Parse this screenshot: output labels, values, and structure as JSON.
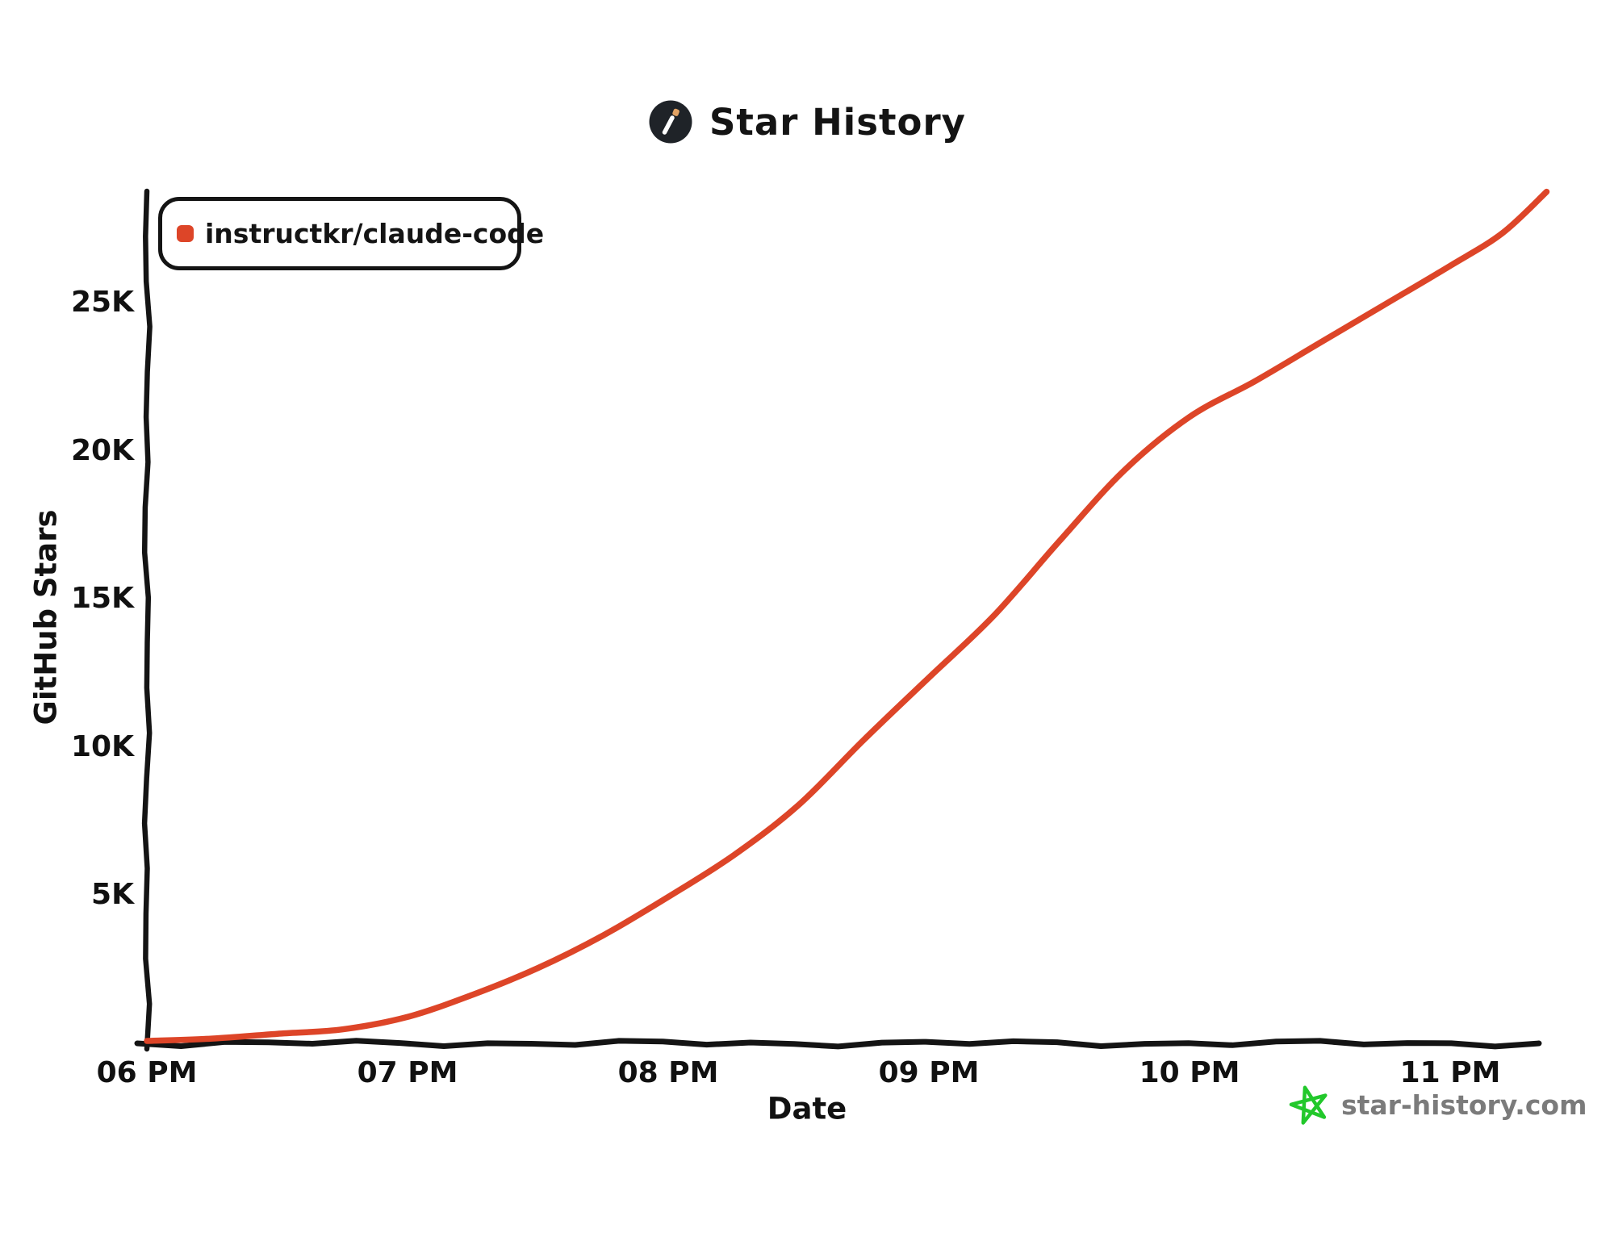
{
  "page": {
    "background": "#ffffff"
  },
  "header": {
    "title": "Star History",
    "logo_bg": "#1f2328",
    "logo_wand": "#ffffff",
    "logo_tip": "#e2a263"
  },
  "legend": {
    "items": [
      {
        "label": "instructkr/claude-code",
        "color": "#dd4528"
      }
    ]
  },
  "chart_data": {
    "type": "line",
    "title": "Star History",
    "xlabel": "Date",
    "ylabel": "GitHub Stars",
    "grid": false,
    "legend_position": "top-left",
    "ylim": [
      0,
      28800
    ],
    "x_unit": "hours after 06 PM",
    "xlim_hours": [
      0,
      5.4
    ],
    "x_ticks": [
      {
        "label": "06 PM",
        "hour": 0
      },
      {
        "label": "07 PM",
        "hour": 1
      },
      {
        "label": "08 PM",
        "hour": 2
      },
      {
        "label": "09 PM",
        "hour": 3
      },
      {
        "label": "10 PM",
        "hour": 4
      },
      {
        "label": "11 PM",
        "hour": 5
      }
    ],
    "y_ticks": [
      {
        "label": "5K",
        "value": 5000
      },
      {
        "label": "10K",
        "value": 10000
      },
      {
        "label": "15K",
        "value": 15000
      },
      {
        "label": "20K",
        "value": 20000
      },
      {
        "label": "25K",
        "value": 25000
      }
    ],
    "series": [
      {
        "name": "instructkr/claude-code",
        "color": "#dd4528",
        "x_hours_after_start": [
          0,
          0.25,
          0.5,
          0.75,
          1,
          1.25,
          1.5,
          1.75,
          2,
          2.25,
          2.5,
          2.75,
          3,
          3.25,
          3.5,
          3.75,
          4,
          4.25,
          4.5,
          4.75,
          5,
          5.2,
          5.37
        ],
        "stars": [
          40,
          120,
          280,
          430,
          850,
          1600,
          2500,
          3600,
          4900,
          6300,
          8000,
          10200,
          12300,
          14400,
          16900,
          19300,
          21100,
          22300,
          23600,
          24900,
          26200,
          27300,
          28700
        ]
      }
    ]
  },
  "watermark": {
    "text": "star-history.com",
    "star_color": "#22c82b",
    "text_color": "#7b7b7b"
  }
}
